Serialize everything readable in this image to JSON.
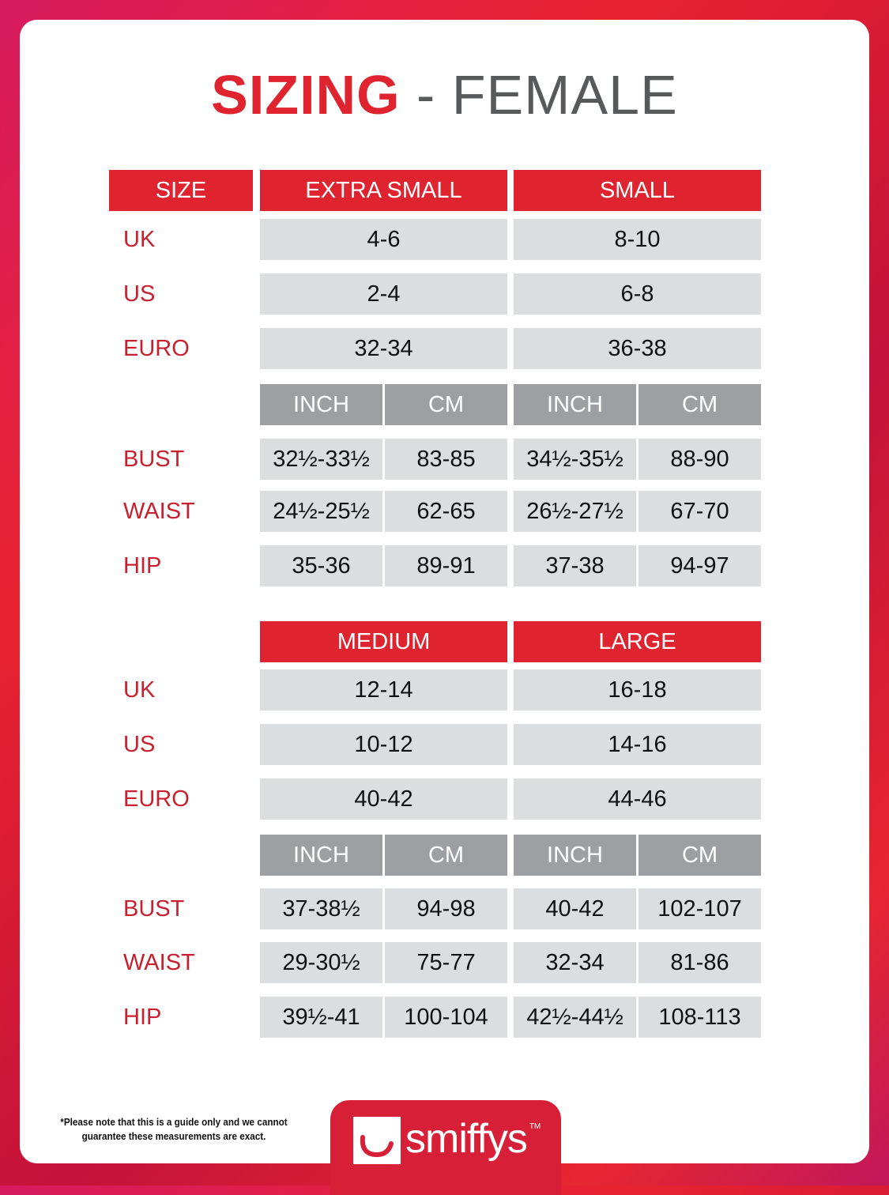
{
  "title": {
    "main": "SIZING",
    "rest": " - FEMALE"
  },
  "size_header": "SIZE",
  "blocks": [
    {
      "sizes": [
        "EXTRA SMALL",
        "SMALL"
      ],
      "region_rows": [
        {
          "label": "UK",
          "values": [
            "4-6",
            "8-10"
          ]
        },
        {
          "label": "US",
          "values": [
            "2-4",
            "6-8"
          ]
        },
        {
          "label": "EURO",
          "values": [
            "32-34",
            "36-38"
          ]
        }
      ],
      "unit_headers": [
        "INCH",
        "CM",
        "INCH",
        "CM"
      ],
      "measure_rows": [
        {
          "label": "BUST",
          "values": [
            "32½-33½",
            "83-85",
            "34½-35½",
            "88-90"
          ]
        },
        {
          "label": "WAIST",
          "values": [
            "24½-25½",
            "62-65",
            "26½-27½",
            "67-70"
          ]
        },
        {
          "label": "HIP",
          "values": [
            "35-36",
            "89-91",
            "37-38",
            "94-97"
          ]
        }
      ]
    },
    {
      "sizes": [
        "MEDIUM",
        "LARGE"
      ],
      "region_rows": [
        {
          "label": "UK",
          "values": [
            "12-14",
            "16-18"
          ]
        },
        {
          "label": "US",
          "values": [
            "10-12",
            "14-16"
          ]
        },
        {
          "label": "EURO",
          "values": [
            "40-42",
            "44-46"
          ]
        }
      ],
      "unit_headers": [
        "INCH",
        "CM",
        "INCH",
        "CM"
      ],
      "measure_rows": [
        {
          "label": "BUST",
          "values": [
            "37-38½",
            "94-98",
            "40-42",
            "102-107"
          ]
        },
        {
          "label": "WAIST",
          "values": [
            "29-30½",
            "75-77",
            "32-34",
            "81-86"
          ]
        },
        {
          "label": "HIP",
          "values": [
            "39½-41",
            "100-104",
            "42½-44½",
            "108-113"
          ]
        }
      ]
    }
  ],
  "footer": {
    "note": "*Please note that this is a guide only and we cannot guarantee these measurements are exact.",
    "logo": "smiffys",
    "trademark": "TM"
  },
  "colors": {
    "brand_red": "#e0242f",
    "label_red": "#c8202f",
    "cell_grey": "#dcddde",
    "subheader_grey": "#9d9fa2"
  }
}
